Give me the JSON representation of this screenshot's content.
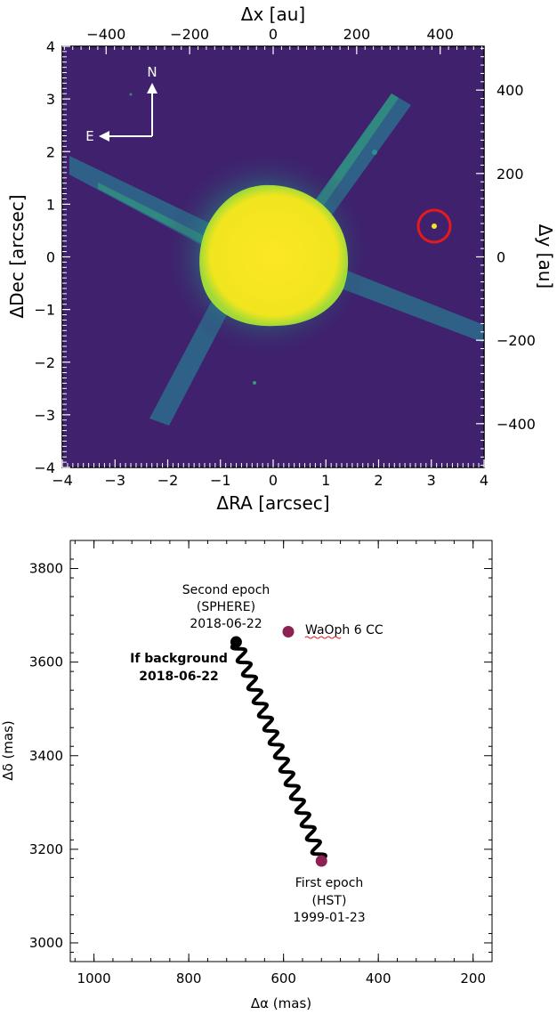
{
  "chart_data": [
    {
      "type": "heatmap",
      "xlabel": "ΔRA [arcsec]",
      "ylabel": "ΔDec [arcsec]",
      "top_xlabel": "Δx [au]",
      "right_ylabel": "Δy [au]",
      "xlim": [
        -4,
        4
      ],
      "ylim": [
        -4,
        4
      ],
      "top_xlim": [
        -505,
        505
      ],
      "right_ylim": [
        -505,
        505
      ],
      "x_ticks": [
        "−4",
        "−3",
        "−2",
        "−1",
        "0",
        "1",
        "2",
        "3",
        "4"
      ],
      "y_ticks": [
        "−4",
        "−3",
        "−2",
        "−1",
        "0",
        "1",
        "2",
        "3",
        "4"
      ],
      "top_ticks": [
        "−400",
        "−200",
        "0",
        "200",
        "400"
      ],
      "right_ticks": [
        "−400",
        "−200",
        "0",
        "200",
        "400"
      ],
      "compass": {
        "north": "N",
        "east": "E"
      },
      "companion": {
        "x": 3.05,
        "y": 0.6
      },
      "colors": {
        "background": "#3b1c66",
        "core": "#f6e520",
        "halo": "#35b779",
        "marker": "#e41a1c"
      }
    },
    {
      "type": "line",
      "xlabel": "Δα (mas)",
      "ylabel": "Δδ (mas)",
      "xlim": [
        1050,
        160
      ],
      "ylim": [
        2960,
        3860
      ],
      "x_ticks": [
        1000,
        800,
        600,
        400,
        200
      ],
      "y_ticks": [
        3000,
        3200,
        3400,
        3600,
        3800
      ],
      "background_track": {
        "start": [
          520,
          3175
        ],
        "end": [
          700,
          3643
        ],
        "oscillations": 16
      },
      "points": [
        {
          "x": 520,
          "y": 3175,
          "label_lines": [
            "First epoch",
            "(HST)",
            "1999-01-23"
          ]
        },
        {
          "x": 590,
          "y": 3665,
          "label": "WaOph 6 CC"
        },
        {
          "x": 700,
          "y": 3643,
          "label_lines": [
            "If background",
            "2018-06-22"
          ]
        }
      ],
      "second_epoch_label": [
        "Second epoch",
        "(SPHERE)",
        "2018-06-22"
      ],
      "colors": {
        "epoch_point": "#8b2252",
        "track": "#000000"
      }
    }
  ]
}
